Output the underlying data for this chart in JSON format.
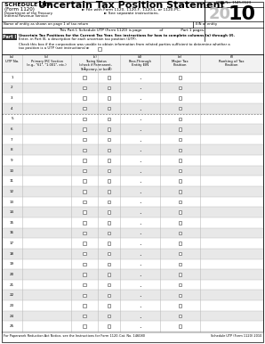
{
  "title": "Uncertain Tax Position Statement",
  "subtitle1": "► File with Form 1120, 1120-F, 1120-L, or 1120-PC.",
  "subtitle2": "► See separate instructions.",
  "schedule_line1": "SCHEDULE UTP",
  "schedule_line2": "(Form 1120)",
  "dept_line1": "Department of the Treasury",
  "dept_line2": "Internal Revenue Service",
  "entity_label": "Name of entity as shown on page 1 of tax return",
  "ein_label": "EIN of entity",
  "omb_label": "OMB No. 1545-0123",
  "year_gray": "20",
  "year_black": "10",
  "page_line": "This Part I, Schedule UTP (Form 1120) is page                of                Part 1 pages.",
  "part_label": "Part I",
  "part_desc1": "Uncertain Tax Positions for the Current Tax Year. See instructions for how to complete columns (a) through (f).",
  "part_desc2": "Enter, in Part III, a description for each uncertain tax position (UTP).",
  "checkbox_line1": "Check this box if the corporation was unable to obtain information from related parties sufficient to determine whether a",
  "checkbox_line2": "tax position is a UTP (see instructions) ►",
  "col_a": "(a)\nUTP No.",
  "col_b": "(b)\nPrimary IRC Section\n(e.g., \"61\", \"1.001\", etc.)",
  "col_c": "(c)\nTaxing Status\n(check if Permanent,\nTemporary, or both)",
  "col_d": "(d)\nPass-Through\nEntity EIN",
  "col_e": "(e)\nMajor Tax\nPosition",
  "col_f": "(f)\nRanking of Tax\nPosition",
  "num_rows": 25,
  "alt_row_color": "#e8e8e8",
  "white_row_color": "#ffffff",
  "grid_color": "#bbbbbb",
  "dotted_after_row": 4,
  "footer_left": "For Paperwork Reduction Act Notice, see the Instructions for Form 1120.",
  "footer_mid": "Cat. No. 146080",
  "footer_right": "Schedule UTP (Form 1120) 2010",
  "background": "#ffffff"
}
